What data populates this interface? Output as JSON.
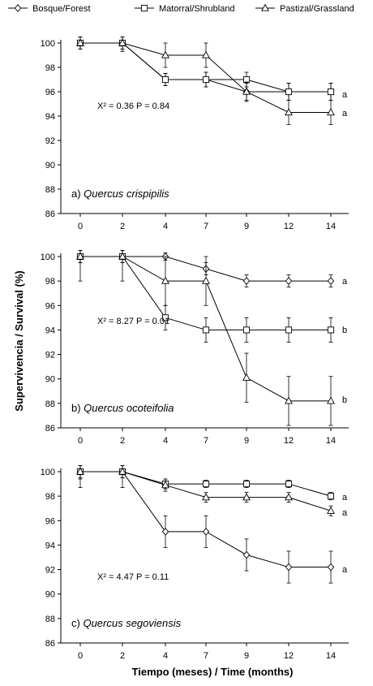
{
  "legend": [
    "Bosque/Forest",
    "Matorral/Shrubland",
    "Pastizal/Grassland"
  ],
  "xlabel": "Tiempo (meses) / Time (months)",
  "ylabel": "Supervivencia / Survival (%)",
  "chart_data": [
    {
      "type": "line",
      "title": "a) Quercus crispipilis",
      "label_prefix": "a) ",
      "species": "Quercus crispipilis",
      "stat": "X² = 0.36 P = 0.84",
      "categories": [
        "0",
        "2",
        "4",
        "7",
        "9",
        "12",
        "14"
      ],
      "ylim": [
        86,
        100
      ],
      "yticks": [
        86,
        88,
        90,
        92,
        94,
        96,
        98,
        100
      ],
      "series": [
        {
          "name": "Bosque/Forest",
          "marker": "diamond",
          "values": [
            100,
            100,
            97,
            97,
            96,
            96,
            96
          ],
          "err": [
            0.5,
            0.5,
            0.5,
            0.6,
            0.7,
            0.7,
            0.7
          ]
        },
        {
          "name": "Matorral/Shrubland",
          "marker": "square",
          "values": [
            100,
            100,
            97,
            97,
            97,
            96,
            96
          ],
          "err": [
            0.5,
            0.5,
            0.5,
            0.6,
            0.6,
            0.7,
            0.7
          ]
        },
        {
          "name": "Pastizal/Grassland",
          "marker": "triangle",
          "values": [
            100,
            100,
            99,
            99,
            96,
            94.3,
            94.3
          ],
          "err": [
            0.5,
            0.7,
            1.0,
            1.0,
            0.8,
            1.0,
            1.0
          ]
        }
      ],
      "significance": [
        "a",
        "a"
      ]
    },
    {
      "type": "line",
      "title": "b) Quercus ocoteifolia",
      "label_prefix": "b) ",
      "species": "Quercus ocoteifolia",
      "stat": "X² = 8.27 P = 0.01",
      "categories": [
        "0",
        "2",
        "4",
        "7",
        "9",
        "12",
        "14"
      ],
      "ylim": [
        86,
        100
      ],
      "yticks": [
        86,
        88,
        90,
        92,
        94,
        96,
        98,
        100
      ],
      "series": [
        {
          "name": "Bosque/Forest",
          "marker": "diamond",
          "values": [
            100,
            100,
            100,
            99,
            98,
            98,
            98
          ],
          "err": [
            0.5,
            0.5,
            0.3,
            0.5,
            0.5,
            0.5,
            0.5
          ]
        },
        {
          "name": "Matorral/Shrubland",
          "marker": "square",
          "values": [
            100,
            100,
            95,
            94,
            94,
            94,
            94
          ],
          "err": [
            2.0,
            2.0,
            1.0,
            1.0,
            1.0,
            1.0,
            1.0
          ]
        },
        {
          "name": "Pastizal/Grassland",
          "marker": "triangle",
          "values": [
            100,
            100,
            98,
            98,
            90.1,
            88.2,
            88.2
          ],
          "err": [
            0.5,
            0.5,
            2.0,
            2.0,
            2.0,
            2.0,
            2.0
          ]
        }
      ],
      "significance": [
        "a",
        "b",
        "b"
      ]
    },
    {
      "type": "line",
      "title": "c) Quercus segoviensis",
      "label_prefix": "c) ",
      "species": "Quercus segoviensis",
      "stat": "X² = 4.47 P = 0.11",
      "categories": [
        "0",
        "2",
        "4",
        "7",
        "9",
        "12",
        "14"
      ],
      "ylim": [
        86,
        100
      ],
      "yticks": [
        86,
        88,
        90,
        92,
        94,
        96,
        98,
        100
      ],
      "series": [
        {
          "name": "Bosque/Forest",
          "marker": "diamond",
          "values": [
            100,
            100,
            95.1,
            95.1,
            93.2,
            92.2,
            92.2
          ],
          "err": [
            0.6,
            0.5,
            1.3,
            1.3,
            1.3,
            1.3,
            1.3
          ]
        },
        {
          "name": "Matorral/Shrubland",
          "marker": "square",
          "values": [
            100,
            100,
            99,
            99,
            99,
            99,
            98
          ],
          "err": [
            0.5,
            0.5,
            0.4,
            0.3,
            0.3,
            0.3,
            0.3
          ]
        },
        {
          "name": "Pastizal/Grassland",
          "marker": "triangle",
          "values": [
            100,
            100,
            98.9,
            97.9,
            97.9,
            97.9,
            96.8
          ],
          "err": [
            1.3,
            1.3,
            0.5,
            0.4,
            0.4,
            0.4,
            0.4
          ]
        }
      ],
      "significance": [
        "a",
        "a",
        "a"
      ]
    }
  ]
}
